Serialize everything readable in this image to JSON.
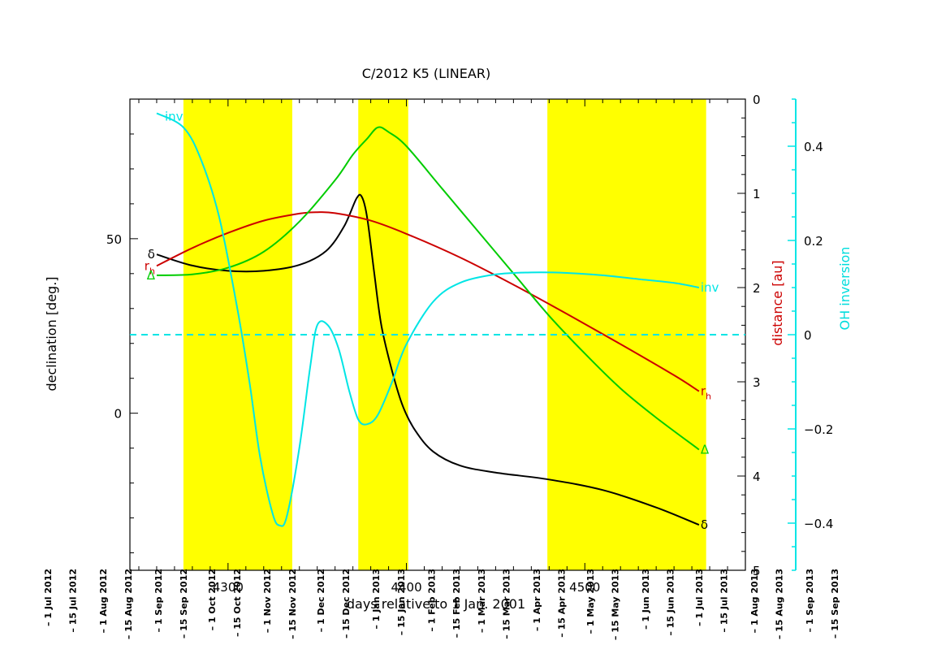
{
  "chart_data": {
    "type": "line",
    "title": "C/2012 K5 (LINEAR)",
    "xlabel": "days relative to 1 Jan. 2001",
    "ylabel": "declination [deg.]",
    "y2label": "distance [au]",
    "y3label": "OH inversion",
    "xlim": [
      4245,
      4590
    ],
    "ylim": [
      -45,
      90
    ],
    "y2lim": [
      5,
      0
    ],
    "y3lim": [
      -0.5,
      0.5
    ],
    "x_ticks": [
      4300,
      4400,
      4500
    ],
    "y_ticks": [
      0,
      50
    ],
    "y2_ticks": [
      0,
      1,
      2,
      3,
      4,
      5
    ],
    "y3_ticks": [
      -0.4,
      -0.2,
      0,
      0.2,
      0.4
    ],
    "grid": false,
    "zero_line": 0,
    "bands": [
      [
        4275,
        4336
      ],
      [
        4373,
        4401
      ],
      [
        4479,
        4568
      ]
    ],
    "date_labels": [
      {
        "day": 4199,
        "text": "1 Jul 2012"
      },
      {
        "day": 4213,
        "text": "15 Jul 2012"
      },
      {
        "day": 4230,
        "text": "1 Aug 2012"
      },
      {
        "day": 4244,
        "text": "15 Aug 2012"
      },
      {
        "day": 4261,
        "text": "1 Sep 2012"
      },
      {
        "day": 4275,
        "text": "15 Sep 2012"
      },
      {
        "day": 4291,
        "text": "1 Oct 2012"
      },
      {
        "day": 4305,
        "text": "15 Oct 2012"
      },
      {
        "day": 4322,
        "text": "1 Nov 2012"
      },
      {
        "day": 4336,
        "text": "15 Nov 2012"
      },
      {
        "day": 4352,
        "text": "1 Dec 2012"
      },
      {
        "day": 4366,
        "text": "15 Dec 2012"
      },
      {
        "day": 4383,
        "text": "1 Jan 2013"
      },
      {
        "day": 4397,
        "text": "15 Jan 2013"
      },
      {
        "day": 4414,
        "text": "1 Feb 2013"
      },
      {
        "day": 4428,
        "text": "15 Feb 2013"
      },
      {
        "day": 4442,
        "text": "1 Mar 2013"
      },
      {
        "day": 4456,
        "text": "15 Mar 2013"
      },
      {
        "day": 4473,
        "text": "1 Apr 2013"
      },
      {
        "day": 4487,
        "text": "15 Apr 2013"
      },
      {
        "day": 4503,
        "text": "1 May 2013"
      },
      {
        "day": 4517,
        "text": "15 May 2013"
      },
      {
        "day": 4534,
        "text": "1 Jun 2013"
      },
      {
        "day": 4548,
        "text": "15 Jun 2013"
      },
      {
        "day": 4564,
        "text": "1 Jul 2013"
      },
      {
        "day": 4578,
        "text": "15 Jul 2013"
      },
      {
        "day": 4595,
        "text": "1 Aug 2013"
      },
      {
        "day": 4609,
        "text": "15 Aug 2013"
      },
      {
        "day": 4626,
        "text": "1 Sep 2013"
      },
      {
        "day": 4640,
        "text": "15 Sep 2013"
      }
    ],
    "series": [
      {
        "label": "δ",
        "axis": "declination",
        "color": "#000000",
        "x": [
          4260,
          4280,
          4300,
          4320,
          4340,
          4355,
          4365,
          4372,
          4375,
          4378,
          4382,
          4386,
          4392,
          4398,
          4405,
          4415,
          4430,
          4450,
          4480,
          4510,
          4540,
          4564
        ],
        "y": [
          45.5,
          42.3,
          40.8,
          40.8,
          42.5,
          46.5,
          53.5,
          61.5,
          62.0,
          56,
          40,
          25,
          12,
          2,
          -5,
          -11,
          -15,
          -17,
          -19,
          -22,
          -27,
          -32
        ]
      },
      {
        "label": "r_h",
        "axis": "distance",
        "color": "#cc0000",
        "x": [
          4260,
          4280,
          4300,
          4320,
          4340,
          4350,
          4360,
          4380,
          4400,
          4430,
          4460,
          4490,
          4520,
          4550,
          4564
        ],
        "y": [
          1.77,
          1.58,
          1.42,
          1.29,
          1.215,
          1.2,
          1.21,
          1.29,
          1.43,
          1.68,
          1.97,
          2.28,
          2.6,
          2.93,
          3.1
        ]
      },
      {
        "label": "Δ",
        "axis": "distance",
        "color": "#00cc00",
        "x": [
          4260,
          4280,
          4300,
          4320,
          4340,
          4360,
          4370,
          4378,
          4384,
          4390,
          4400,
          4420,
          4440,
          4460,
          4480,
          4500,
          4520,
          4540,
          4564
        ],
        "y": [
          1.87,
          1.86,
          1.79,
          1.62,
          1.3,
          0.86,
          0.59,
          0.42,
          0.3,
          0.35,
          0.5,
          0.95,
          1.4,
          1.85,
          2.3,
          2.7,
          3.07,
          3.38,
          3.72
        ]
      },
      {
        "label": "inv",
        "axis": "OH inversion",
        "color": "#00e5e5",
        "x": [
          4260,
          4275,
          4285,
          4295,
          4305,
          4312,
          4318,
          4325,
          4329,
          4333,
          4340,
          4346,
          4350,
          4356,
          4362,
          4368,
          4373,
          4378,
          4384,
          4392,
          4400,
          4415,
          4430,
          4450,
          4470,
          4490,
          4510,
          4530,
          4550,
          4564
        ],
        "y": [
          0.47,
          0.44,
          0.37,
          0.25,
          0.06,
          -0.1,
          -0.26,
          -0.38,
          -0.405,
          -0.385,
          -0.24,
          -0.07,
          0.02,
          0.02,
          -0.03,
          -0.12,
          -0.18,
          -0.19,
          -0.17,
          -0.1,
          -0.02,
          0.07,
          0.11,
          0.128,
          0.132,
          0.131,
          0.126,
          0.118,
          0.11,
          0.1
        ]
      }
    ]
  }
}
